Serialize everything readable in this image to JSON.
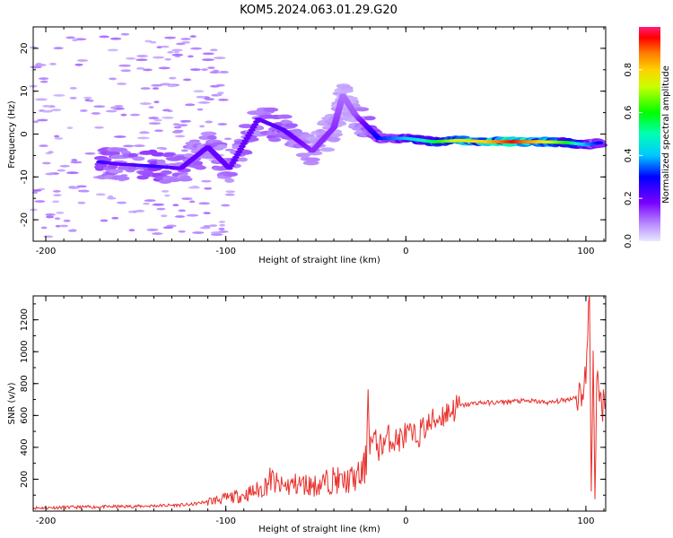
{
  "title": "KOM5.2024.063.01.29.G20",
  "chart_data": [
    {
      "type": "heatmap",
      "xlabel": "Height of straight line (km)",
      "ylabel": "Frequency (Hz)",
      "xlim": [
        -207,
        111
      ],
      "ylim": [
        -25,
        25
      ],
      "x_ticks": [
        "-200",
        "-100",
        "0",
        "100"
      ],
      "y_ticks": [
        "-20",
        "-10",
        "0",
        "10",
        "20"
      ],
      "colorbar": {
        "label": "Normalized spectral amplitude",
        "range": [
          0,
          1
        ],
        "ticks": [
          "0.0",
          "0.2",
          "0.4",
          "0.6",
          "0.8"
        ]
      },
      "dominant_track": [
        {
          "x": -170,
          "y": -6.5,
          "amp": 0.25
        },
        {
          "x": -160,
          "y": -7,
          "amp": 0.2
        },
        {
          "x": -140,
          "y": -7.5,
          "amp": 0.25
        },
        {
          "x": -125,
          "y": -8,
          "amp": 0.2
        },
        {
          "x": -110,
          "y": -3,
          "amp": 0.2
        },
        {
          "x": -98,
          "y": -8,
          "amp": 0.2
        },
        {
          "x": -82,
          "y": 3.5,
          "amp": 0.2
        },
        {
          "x": -68,
          "y": 1,
          "amp": 0.22
        },
        {
          "x": -52,
          "y": -4,
          "amp": 0.15
        },
        {
          "x": -40,
          "y": 1.5,
          "amp": 0.15
        },
        {
          "x": -35,
          "y": 9,
          "amp": 0.1
        },
        {
          "x": -28,
          "y": 4.5,
          "amp": 0.12
        },
        {
          "x": -15,
          "y": -1,
          "amp": 0.3
        },
        {
          "x": 0,
          "y": -1,
          "amp": 0.4
        },
        {
          "x": 15,
          "y": -1.8,
          "amp": 0.55
        },
        {
          "x": 30,
          "y": -1.5,
          "amp": 0.75
        },
        {
          "x": 45,
          "y": -1.8,
          "amp": 0.8
        },
        {
          "x": 60,
          "y": -1.8,
          "amp": 0.95
        },
        {
          "x": 75,
          "y": -1.8,
          "amp": 0.8
        },
        {
          "x": 90,
          "y": -2,
          "amp": 0.6
        },
        {
          "x": 100,
          "y": -2.5,
          "amp": 0.4
        },
        {
          "x": 108,
          "y": -2,
          "amp": 0.3
        }
      ]
    },
    {
      "type": "line",
      "xlabel": "Height of straight line (km)",
      "ylabel": "SNR (v/v)",
      "xlim": [
        -207,
        111
      ],
      "ylim": [
        0,
        1350
      ],
      "x_ticks": [
        "-200",
        "-100",
        "0",
        "100"
      ],
      "y_ticks": [
        "200",
        "400",
        "600",
        "800",
        "1000",
        "1200"
      ],
      "color": "#e8302c",
      "series": [
        {
          "x": [
            -207,
            -180,
            -150,
            -120,
            -110,
            -100,
            -90,
            -80,
            -75,
            -70,
            -60,
            -50,
            -45,
            -40,
            -35,
            -30,
            -25,
            -22,
            -21,
            -20,
            -18,
            -15,
            -10,
            -5,
            0,
            5,
            10,
            15,
            20,
            25,
            30,
            40,
            50,
            60,
            70,
            80,
            85,
            90,
            95,
            98,
            100,
            102,
            103,
            104,
            105,
            106,
            108,
            111
          ],
          "y": [
            20,
            25,
            30,
            40,
            60,
            80,
            100,
            140,
            200,
            150,
            170,
            160,
            180,
            200,
            180,
            200,
            220,
            300,
            780,
            420,
            450,
            400,
            460,
            440,
            480,
            460,
            520,
            560,
            600,
            630,
            660,
            680,
            680,
            690,
            690,
            680,
            690,
            700,
            720,
            750,
            850,
            1350,
            200,
            950,
            160,
            800,
            680,
            680
          ]
        }
      ]
    }
  ]
}
